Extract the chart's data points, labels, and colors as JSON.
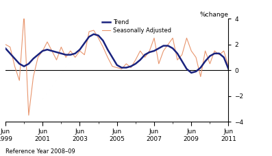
{
  "trend": [
    1.7,
    1.3,
    0.9,
    0.5,
    0.3,
    0.5,
    0.9,
    1.2,
    1.5,
    1.6,
    1.5,
    1.4,
    1.3,
    1.2,
    1.2,
    1.3,
    1.6,
    2.1,
    2.6,
    2.8,
    2.7,
    2.3,
    1.6,
    1.0,
    0.4,
    0.2,
    0.2,
    0.3,
    0.5,
    0.8,
    1.2,
    1.4,
    1.5,
    1.7,
    1.9,
    1.9,
    1.7,
    1.3,
    0.7,
    0.1,
    -0.2,
    -0.1,
    0.2,
    0.7,
    1.1,
    1.3,
    1.3,
    1.0,
    0.1
  ],
  "sa": [
    2.0,
    1.8,
    0.3,
    -0.8,
    4.3,
    -3.5,
    -0.5,
    1.0,
    1.5,
    2.2,
    1.5,
    0.8,
    1.8,
    1.0,
    1.5,
    1.0,
    1.5,
    1.2,
    3.0,
    3.1,
    2.5,
    1.8,
    1.0,
    0.3,
    0.2,
    0.1,
    0.5,
    0.2,
    0.8,
    1.5,
    1.0,
    1.5,
    2.5,
    0.5,
    1.5,
    2.0,
    2.5,
    0.8,
    1.2,
    2.5,
    1.5,
    1.0,
    -0.5,
    1.5,
    0.5,
    1.5,
    1.2,
    1.5,
    0.3
  ],
  "trend_color": "#1a237e",
  "sa_color": "#e8956d",
  "ylim": [
    -4,
    4
  ],
  "yticks": [
    -4,
    -2,
    0,
    2,
    4
  ],
  "xtick_positions": [
    0,
    8,
    16,
    24,
    32,
    40,
    48
  ],
  "xtick_labels": [
    "Jun\n1999",
    "Jun\n2001",
    "Jun\n2003",
    "Jun\n2005",
    "Jun\n2007",
    "Jun\n2009",
    "Jun\n2011"
  ],
  "ylabel": "%change",
  "legend_trend": "Trend",
  "legend_sa": "Seasonally Adjusted",
  "footer": "Reference Year 2008–09",
  "n_quarters": 49
}
